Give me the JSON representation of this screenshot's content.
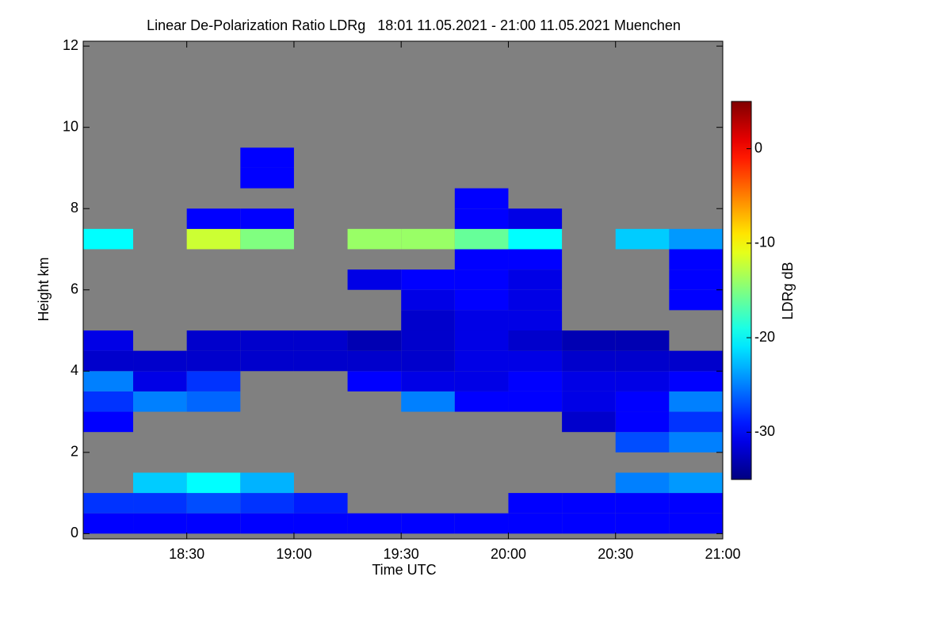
{
  "chart_data": {
    "type": "heatmap",
    "title": "Linear De-Polarization Ratio LDRg   18:01 11.05.2021 - 21:00 11.05.2021 Muenchen",
    "xlabel": "Time UTC",
    "ylabel": "Height km",
    "colorbar_label": "LDRg dB",
    "xlim": [
      18.017,
      21.0
    ],
    "xticks": [
      {
        "value": 18.5,
        "label": "18:30"
      },
      {
        "value": 19.0,
        "label": "19:00"
      },
      {
        "value": 19.5,
        "label": "19:30"
      },
      {
        "value": 20.0,
        "label": "20:00"
      },
      {
        "value": 20.5,
        "label": "20:30"
      },
      {
        "value": 21.0,
        "label": "21:00"
      }
    ],
    "ylim": [
      -0.13,
      12.12
    ],
    "yticks": [
      0,
      2,
      4,
      6,
      8,
      10,
      12
    ],
    "clim": [
      -35,
      5
    ],
    "cticks": [
      0,
      -10,
      -20,
      -30
    ],
    "colormap": "jet",
    "background": "#808080",
    "x_bins": [
      18.017,
      18.25,
      18.5,
      18.75,
      19.0,
      19.25,
      19.5,
      19.75,
      20.0,
      20.25,
      20.5,
      20.75,
      21.0
    ],
    "y_bins": [
      0,
      0.5,
      1,
      1.5,
      2,
      2.5,
      3,
      3.5,
      4,
      4.5,
      5,
      5.5,
      6,
      6.5,
      7,
      7.5,
      8,
      8.5,
      9,
      9.5
    ],
    "z": [
      [
        -30,
        -30,
        -30,
        -30,
        -30,
        -30,
        -30,
        -30,
        -30,
        -30,
        -30,
        -30
      ],
      [
        -28,
        -28,
        -27,
        -28,
        -29,
        null,
        null,
        null,
        -30,
        -30,
        -30,
        -30
      ],
      [
        null,
        -22,
        -20,
        -23,
        null,
        null,
        null,
        null,
        null,
        null,
        -25,
        -24
      ],
      [
        null,
        null,
        null,
        null,
        null,
        null,
        null,
        null,
        null,
        null,
        null,
        null
      ],
      [
        null,
        null,
        null,
        null,
        null,
        null,
        null,
        null,
        null,
        null,
        -27,
        -25
      ],
      [
        -30,
        null,
        null,
        null,
        null,
        null,
        null,
        null,
        null,
        -32,
        -30,
        -28
      ],
      [
        -28,
        -25,
        -26,
        null,
        null,
        null,
        -25,
        -30,
        -30,
        -31,
        -30,
        -25
      ],
      [
        -25,
        -31,
        -28,
        null,
        null,
        -30,
        -31,
        -31,
        -30,
        -31,
        -31,
        -30
      ],
      [
        -32,
        -32,
        -32,
        -32,
        -32,
        -32,
        -32,
        -31,
        -31,
        -32,
        -32,
        -32
      ],
      [
        -31,
        null,
        -32,
        -32,
        -32,
        -33,
        -32,
        -31,
        -32,
        -33,
        -33,
        null
      ],
      [
        null,
        null,
        null,
        null,
        null,
        null,
        -32,
        -31,
        -31,
        null,
        null,
        null
      ],
      [
        null,
        null,
        null,
        null,
        null,
        null,
        -31,
        -30,
        -31,
        null,
        null,
        -30
      ],
      [
        null,
        null,
        null,
        null,
        null,
        -31,
        -30,
        -30,
        -31,
        null,
        null,
        -30
      ],
      [
        null,
        null,
        null,
        null,
        null,
        null,
        null,
        -30,
        -30,
        null,
        null,
        -30
      ],
      [
        -20,
        null,
        -12,
        -15,
        null,
        -14,
        -14,
        -16,
        -20,
        null,
        -22,
        -24
      ],
      [
        null,
        null,
        -30,
        -30,
        null,
        null,
        null,
        -30,
        -31,
        null,
        null,
        null
      ],
      [
        null,
        null,
        null,
        null,
        null,
        null,
        null,
        -30,
        null,
        null,
        null,
        null
      ],
      [
        null,
        null,
        null,
        -30,
        null,
        null,
        null,
        null,
        null,
        null,
        null,
        null
      ],
      [
        null,
        null,
        null,
        -30,
        null,
        null,
        null,
        null,
        null,
        null,
        null,
        null
      ]
    ]
  }
}
